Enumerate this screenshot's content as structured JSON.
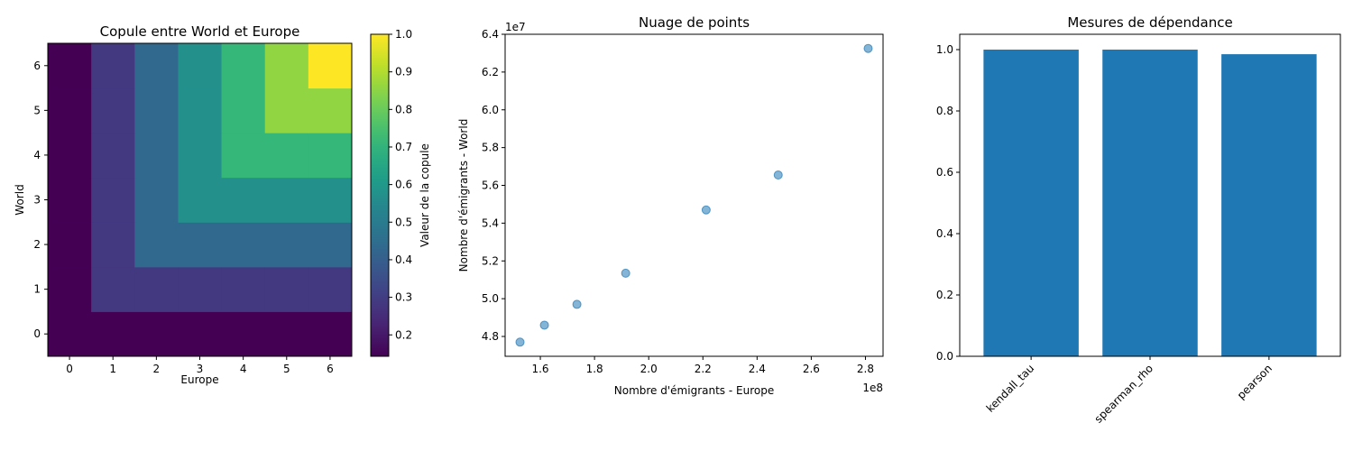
{
  "chart_data": [
    {
      "type": "heatmap",
      "title": "Copule entre World et Europe",
      "xlabel": "Europe",
      "ylabel": "World",
      "x_ticks": [
        "0",
        "1",
        "2",
        "3",
        "4",
        "5",
        "6"
      ],
      "y_ticks": [
        "0",
        "1",
        "2",
        "3",
        "4",
        "5",
        "6"
      ],
      "matrix_rows_bottom_to_top": [
        [
          0.143,
          0.143,
          0.143,
          0.143,
          0.143,
          0.143,
          0.143
        ],
        [
          0.143,
          0.286,
          0.286,
          0.286,
          0.286,
          0.286,
          0.286
        ],
        [
          0.143,
          0.286,
          0.429,
          0.429,
          0.429,
          0.429,
          0.429
        ],
        [
          0.143,
          0.286,
          0.429,
          0.571,
          0.571,
          0.571,
          0.571
        ],
        [
          0.143,
          0.286,
          0.429,
          0.571,
          0.714,
          0.714,
          0.714
        ],
        [
          0.143,
          0.286,
          0.429,
          0.571,
          0.714,
          0.857,
          0.857
        ],
        [
          0.143,
          0.286,
          0.429,
          0.571,
          0.714,
          0.857,
          1.0
        ]
      ],
      "colormap": "viridis",
      "colorbar": {
        "label": "Valeur de la copule",
        "range": [
          0.143,
          1.0
        ],
        "ticks": [
          "0.2",
          "0.3",
          "0.4",
          "0.5",
          "0.6",
          "0.7",
          "0.8",
          "0.9",
          "1.0"
        ]
      }
    },
    {
      "type": "scatter",
      "title": "Nuage de points",
      "xlabel": "Nombre d'émigrants - Europe",
      "ylabel": "Nombre d'émigrants - World",
      "x_offset_label": "1e8",
      "y_offset_label": "1e7",
      "x_ticks": [
        "1.6",
        "1.8",
        "2.0",
        "2.2",
        "2.4",
        "2.6",
        "2.8"
      ],
      "y_ticks": [
        "4.8",
        "5.0",
        "5.2",
        "5.4",
        "5.6",
        "5.8",
        "6.0",
        "6.2",
        "6.4"
      ],
      "xlim": [
        1.47,
        2.865
      ],
      "ylim": [
        4.695,
        6.4
      ],
      "color": "#1f77b4",
      "x": [
        1.525,
        1.615,
        1.735,
        1.915,
        2.212,
        2.478,
        2.81
      ],
      "y": [
        4.77,
        4.86,
        4.97,
        5.135,
        5.47,
        5.655,
        6.325
      ]
    },
    {
      "type": "bar",
      "title": "Mesures de dépendance",
      "categories": [
        "kendall_tau",
        "spearman_rho",
        "pearson"
      ],
      "values": [
        1.0,
        1.0,
        0.985
      ],
      "y_ticks": [
        "0.0",
        "0.2",
        "0.4",
        "0.6",
        "0.8",
        "1.0"
      ],
      "ylim": [
        0,
        1.05
      ],
      "color": "#1f77b4"
    }
  ]
}
